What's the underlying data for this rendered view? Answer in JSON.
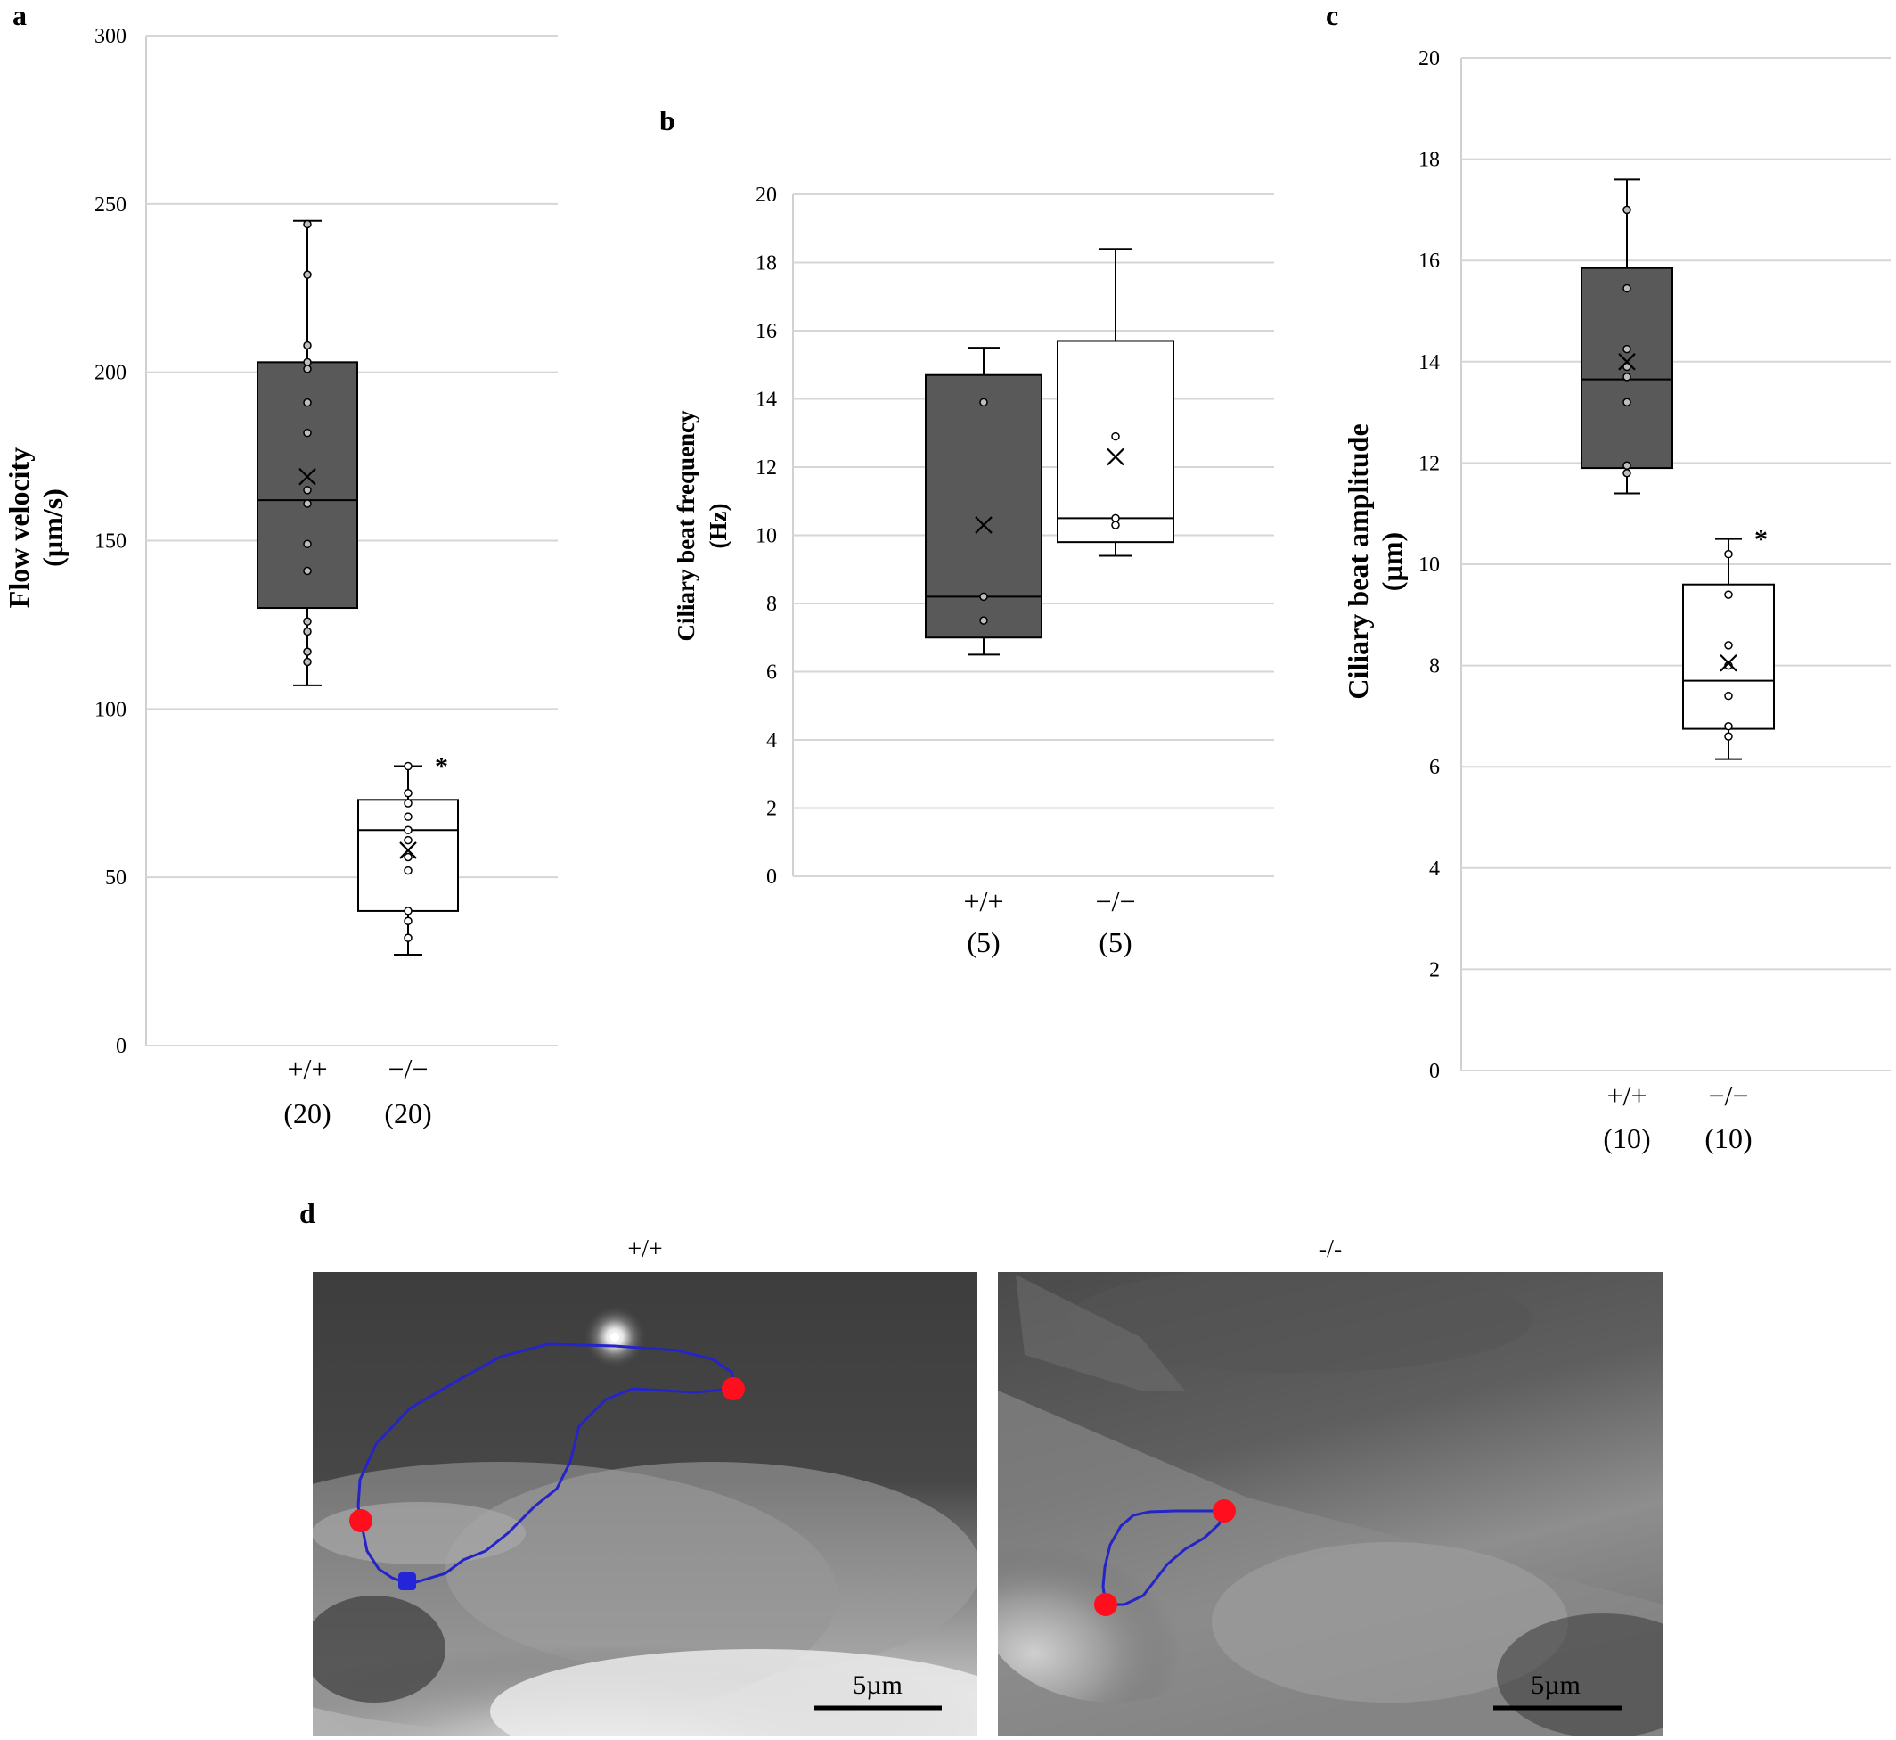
{
  "chart_data": [
    {
      "panel": "a",
      "type": "box",
      "ylabel": [
        "Flow velocity",
        "(µm/s)"
      ],
      "ylim": [
        0,
        300
      ],
      "yticks": [
        0,
        50,
        100,
        150,
        200,
        250,
        300
      ],
      "grid": true,
      "groups": [
        {
          "label": "+/+",
          "n": "(20)",
          "fill": "#595959",
          "whisker_low": 107,
          "q1": 130,
          "median": 162,
          "mean": 169,
          "q3": 203,
          "whisker_high": 245,
          "points": [
            244,
            229,
            208,
            203,
            201,
            191,
            182,
            165,
            161,
            149,
            141,
            126,
            123,
            117,
            114
          ],
          "star": ""
        },
        {
          "label": "−/−",
          "n": "(20)",
          "fill": "#ffffff",
          "whisker_low": 27,
          "q1": 40,
          "median": 64,
          "mean": 58,
          "q3": 73,
          "whisker_high": 83,
          "points": [
            83,
            75,
            72,
            68,
            64,
            61,
            56,
            52,
            40,
            37,
            32
          ],
          "star": "*"
        }
      ]
    },
    {
      "panel": "b",
      "type": "box",
      "ylabel": [
        "Ciliary beat frequency",
        "(Hz)"
      ],
      "ylim": [
        0,
        20
      ],
      "yticks": [
        0,
        2,
        4,
        6,
        8,
        10,
        12,
        14,
        16,
        18,
        20
      ],
      "grid": true,
      "groups": [
        {
          "label": "+/+",
          "n": "(5)",
          "fill": "#595959",
          "whisker_low": 6.5,
          "q1": 7.0,
          "median": 8.2,
          "mean": 10.3,
          "q3": 14.7,
          "whisker_high": 15.5,
          "points": [
            13.9,
            8.2,
            7.5
          ],
          "star": ""
        },
        {
          "label": "−/−",
          "n": "(5)",
          "fill": "#ffffff",
          "whisker_low": 9.4,
          "q1": 9.8,
          "median": 10.5,
          "mean": 12.3,
          "q3": 15.7,
          "whisker_high": 18.4,
          "points": [
            12.9,
            10.5,
            10.3
          ],
          "star": ""
        }
      ]
    },
    {
      "panel": "c",
      "type": "box",
      "ylabel": [
        "Ciliary beat amplitude",
        "(µm)"
      ],
      "ylim": [
        0,
        20
      ],
      "yticks": [
        0,
        2,
        4,
        6,
        8,
        10,
        12,
        14,
        16,
        18,
        20
      ],
      "grid": true,
      "groups": [
        {
          "label": "+/+",
          "n": "(10)",
          "fill": "#595959",
          "whisker_low": 11.4,
          "q1": 11.9,
          "median": 13.65,
          "mean": 14.0,
          "q3": 15.85,
          "whisker_high": 17.6,
          "points": [
            17.0,
            15.45,
            14.25,
            13.9,
            13.7,
            13.2,
            11.95,
            11.8
          ],
          "star": ""
        },
        {
          "label": "−/−",
          "n": "(10)",
          "fill": "#ffffff",
          "whisker_low": 6.15,
          "q1": 6.75,
          "median": 7.7,
          "mean": 8.05,
          "q3": 9.6,
          "whisker_high": 10.5,
          "points": [
            10.2,
            9.4,
            8.4,
            8.0,
            7.4,
            6.8,
            6.6
          ],
          "star": "*"
        }
      ]
    }
  ],
  "panels": {
    "a": "a",
    "b": "b",
    "c": "c",
    "d": "d"
  },
  "images": {
    "wt": {
      "title": "+/+",
      "scale": "5µm"
    },
    "ko": {
      "title": "-/-",
      "scale": "5µm"
    }
  },
  "colors": {
    "box_dark": "#595959",
    "trace": "#2424c8",
    "marker_red": "#ff0f1e",
    "marker_blue": "#2424d8"
  }
}
